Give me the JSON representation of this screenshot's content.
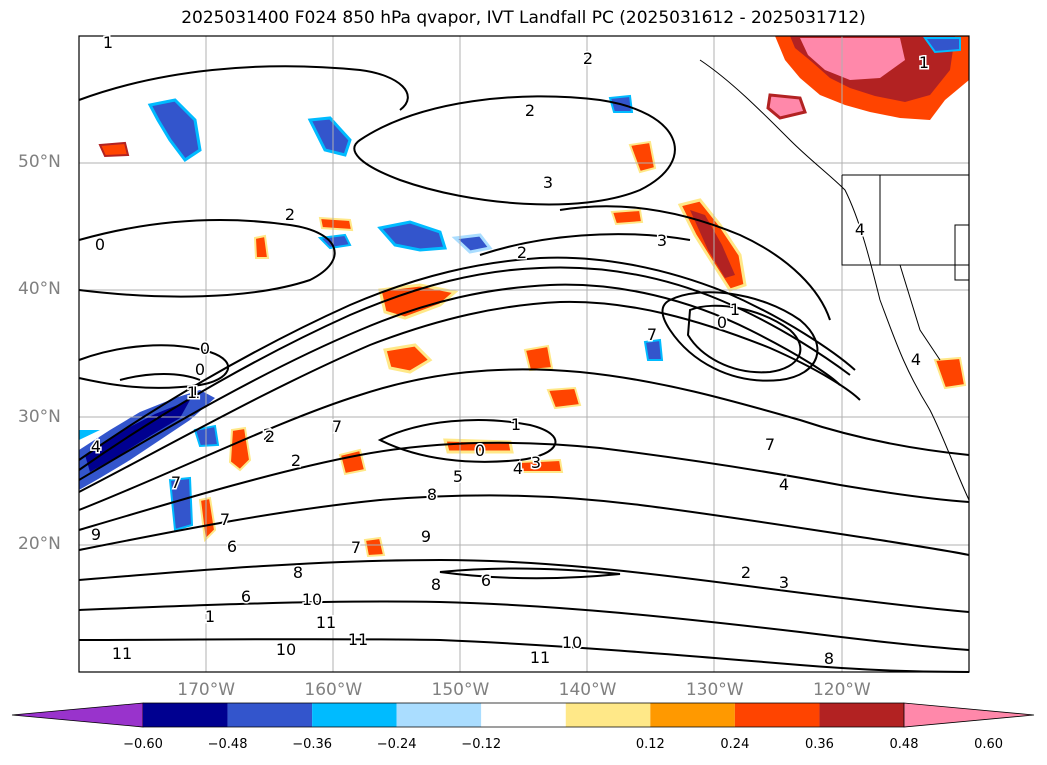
{
  "title": "2025031400 F024 850 hPa qvapor, IVT Landfall PC (2025031612 - 2025031712)",
  "map": {
    "lat_labels": [
      {
        "label": "50°N",
        "lat": 50
      },
      {
        "label": "40°N",
        "lat": 40
      },
      {
        "label": "30°N",
        "lat": 30
      },
      {
        "label": "20°N",
        "lat": 20
      }
    ],
    "lon_labels": [
      {
        "label": "170°W",
        "lon": -170
      },
      {
        "label": "160°W",
        "lon": -160
      },
      {
        "label": "150°W",
        "lon": -150
      },
      {
        "label": "140°W",
        "lon": -140
      },
      {
        "label": "130°W",
        "lon": -130
      },
      {
        "label": "120°W",
        "lon": -120
      }
    ],
    "extent": {
      "lon_min": -180,
      "lon_max": -110,
      "lat_min": 10,
      "lat_max": 60
    },
    "contour_labels": [
      "1",
      "2",
      "2",
      "2",
      "3",
      "3",
      "2",
      "0",
      "0",
      "0",
      "1",
      "7",
      "2",
      "8",
      "7",
      "1",
      "0",
      "4",
      "3",
      "5",
      "8",
      "9",
      "7",
      "6",
      "7",
      "6",
      "8",
      "10",
      "11",
      "11",
      "10",
      "11",
      "11",
      "10",
      "8",
      "6",
      "2",
      "3",
      "4",
      "7",
      "0",
      "1",
      "2",
      "4",
      "4",
      "1",
      "9",
      "7",
      "2",
      "1",
      "1",
      "4"
    ]
  },
  "colorbar": {
    "ticks": [
      "−0.60",
      "−0.48",
      "−0.36",
      "−0.24",
      "−0.12",
      "0.12",
      "0.24",
      "0.36",
      "0.48",
      "0.60"
    ],
    "colors": [
      "#9933cc",
      "#000090",
      "#3355cc",
      "#00bbff",
      "#aaddff",
      "#ffffff",
      "#ffe888",
      "#ff9900",
      "#ff4400",
      "#b22222",
      "#ff88aa"
    ]
  }
}
